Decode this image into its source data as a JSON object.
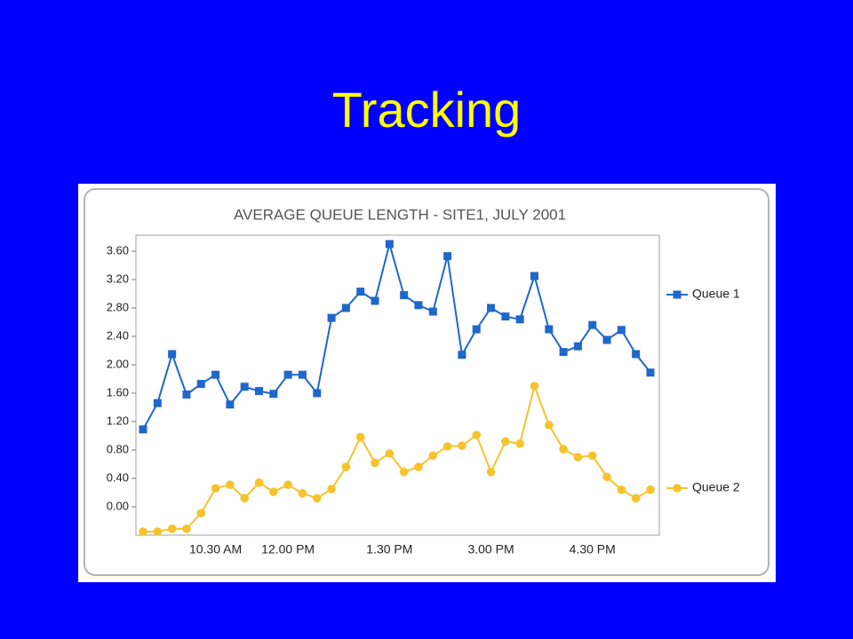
{
  "title": "Tracking",
  "chart_data": {
    "type": "line",
    "title": "AVERAGE QUEUE LENGTH - SITE1, JULY 2001",
    "categories": [
      null,
      null,
      null,
      null,
      null,
      "10.30 AM",
      null,
      null,
      null,
      null,
      "12.00 PM",
      null,
      null,
      null,
      null,
      null,
      null,
      "1.30 PM",
      null,
      null,
      null,
      null,
      null,
      null,
      "3.00 PM",
      null,
      null,
      null,
      null,
      null,
      null,
      "4.30 PM",
      null,
      null,
      null,
      null
    ],
    "series": [
      {
        "name": "Queue 1",
        "color": "#1f67c9",
        "marker": "square",
        "values": [
          1.09,
          1.46,
          2.15,
          1.58,
          1.73,
          1.86,
          1.44,
          1.69,
          1.63,
          1.59,
          1.86,
          1.86,
          1.6,
          2.66,
          2.8,
          3.03,
          2.9,
          3.7,
          2.98,
          2.84,
          2.75,
          3.53,
          2.14,
          2.5,
          2.8,
          2.68,
          2.64,
          3.25,
          2.5,
          2.18,
          2.26,
          2.56,
          2.35,
          2.49,
          2.15,
          1.89
        ]
      },
      {
        "name": "Queue 2",
        "color": "#f6c32c",
        "marker": "circle",
        "values": [
          -0.35,
          -0.35,
          -0.31,
          -0.31,
          -0.09,
          0.26,
          0.31,
          0.12,
          0.34,
          0.21,
          0.31,
          0.19,
          0.12,
          0.25,
          0.56,
          0.98,
          0.62,
          0.75,
          0.49,
          0.56,
          0.72,
          0.85,
          0.86,
          1.01,
          0.49,
          0.92,
          0.89,
          1.7,
          1.15,
          0.81,
          0.7,
          0.72,
          0.42,
          0.24,
          0.12,
          0.24
        ]
      }
    ],
    "ylim": [
      -0.4,
      3.825
    ],
    "yticks": [
      {
        "value": 0,
        "label": "0.00"
      },
      {
        "value": 0.4,
        "label": "0.40"
      },
      {
        "value": 0.8,
        "label": "0.80"
      },
      {
        "value": 1.2,
        "label": "1.20"
      },
      {
        "value": 1.6,
        "label": "1.60"
      },
      {
        "value": 2,
        "label": "2.00"
      },
      {
        "value": 2.4,
        "label": "2.40"
      },
      {
        "value": 2.8,
        "label": "2.80"
      },
      {
        "value": 3.2,
        "label": "3.20"
      },
      {
        "value": 3.6,
        "label": "3.60"
      }
    ],
    "grid": false
  }
}
